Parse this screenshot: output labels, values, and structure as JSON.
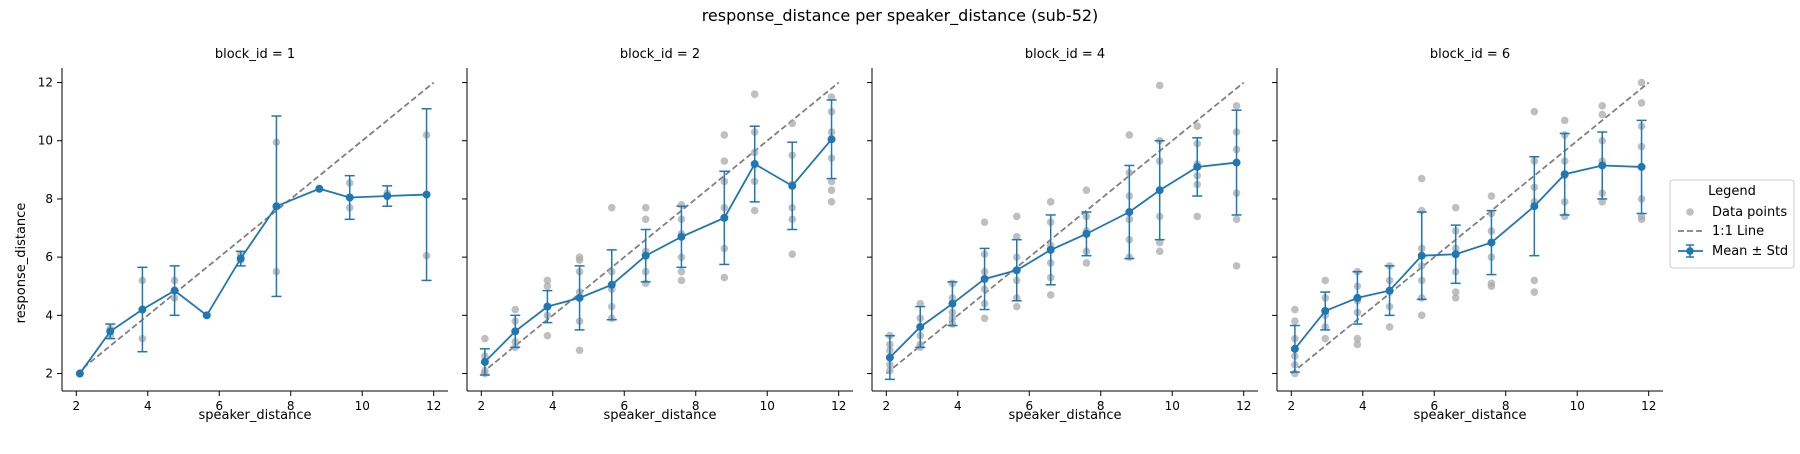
{
  "figure": {
    "title": "response_distance per speaker_distance (sub-52)",
    "xlabel": "speaker_distance",
    "ylabel": "response_distance"
  },
  "legend": {
    "title": "Legend",
    "items": [
      {
        "label": "Data points"
      },
      {
        "label": "1:1 Line"
      },
      {
        "label": "Mean ± Std"
      }
    ],
    "placement": "right"
  },
  "colors": {
    "mean": "#1f77b4",
    "points": "#a9a9a9",
    "identity": "#808080"
  },
  "chart_data": [
    {
      "type": "line",
      "title": "block_id = 1",
      "xlabel": "speaker_distance",
      "ylabel": "response_distance",
      "xlim": [
        1.6,
        12.4
      ],
      "ylim": [
        1.4,
        12.5
      ],
      "xticks": [
        2,
        4,
        6,
        8,
        10,
        12
      ],
      "yticks": [
        2,
        4,
        6,
        8,
        10,
        12
      ],
      "identity_line": [
        [
          2,
          2
        ],
        [
          12,
          12
        ]
      ],
      "mean_series": {
        "name": "Mean ± Std",
        "x": [
          2.1,
          2.95,
          3.85,
          4.75,
          5.65,
          6.6,
          7.6,
          8.8,
          9.65,
          10.7,
          11.8
        ],
        "mean": [
          2.0,
          3.45,
          4.2,
          4.85,
          4.0,
          5.95,
          7.75,
          8.35,
          8.05,
          8.1,
          8.15
        ],
        "std": [
          0.0,
          0.25,
          1.45,
          0.85,
          0.0,
          0.25,
          3.1,
          0.0,
          0.75,
          0.35,
          2.95
        ]
      },
      "points": [
        [
          2.1,
          2.0
        ],
        [
          2.95,
          3.3
        ],
        [
          2.95,
          3.55
        ],
        [
          3.85,
          5.2
        ],
        [
          3.85,
          3.2
        ],
        [
          4.75,
          4.6
        ],
        [
          4.75,
          5.2
        ],
        [
          5.65,
          4.0
        ],
        [
          6.6,
          5.9
        ],
        [
          6.6,
          6.1
        ],
        [
          7.6,
          9.95
        ],
        [
          7.6,
          5.5
        ],
        [
          8.8,
          8.35
        ],
        [
          9.65,
          8.55
        ],
        [
          9.65,
          7.7
        ],
        [
          10.7,
          8.1
        ],
        [
          10.7,
          8.2
        ],
        [
          11.8,
          10.2
        ],
        [
          11.8,
          6.05
        ]
      ]
    },
    {
      "type": "line",
      "title": "block_id = 2",
      "xlabel": "speaker_distance",
      "xlim": [
        1.6,
        12.4
      ],
      "ylim": [
        1.4,
        12.5
      ],
      "xticks": [
        2,
        4,
        6,
        8,
        10,
        12
      ],
      "yticks": [
        2,
        4,
        6,
        8,
        10,
        12
      ],
      "identity_line": [
        [
          2,
          2
        ],
        [
          12,
          12
        ]
      ],
      "mean_series": {
        "name": "Mean ± Std",
        "x": [
          2.1,
          2.95,
          3.85,
          4.75,
          5.65,
          6.6,
          7.6,
          8.8,
          9.65,
          10.7,
          11.8
        ],
        "mean": [
          2.4,
          3.45,
          4.3,
          4.6,
          5.05,
          6.05,
          6.7,
          7.35,
          9.2,
          8.45,
          10.05
        ],
        "std": [
          0.45,
          0.55,
          0.55,
          1.1,
          1.2,
          0.9,
          1.05,
          1.6,
          1.3,
          1.5,
          1.35
        ]
      },
      "points": [
        [
          2.1,
          2.0
        ],
        [
          2.1,
          3.2
        ],
        [
          2.1,
          2.6
        ],
        [
          2.1,
          2.1
        ],
        [
          2.95,
          4.2
        ],
        [
          2.95,
          3.1
        ],
        [
          2.95,
          2.9
        ],
        [
          2.95,
          3.8
        ],
        [
          3.85,
          5.2
        ],
        [
          3.85,
          4.0
        ],
        [
          3.85,
          3.3
        ],
        [
          3.85,
          5.0
        ],
        [
          4.75,
          6.0
        ],
        [
          4.75,
          5.5
        ],
        [
          4.75,
          4.8
        ],
        [
          4.75,
          3.8
        ],
        [
          4.75,
          2.8
        ],
        [
          4.75,
          5.9
        ],
        [
          5.65,
          7.7
        ],
        [
          5.65,
          5.5
        ],
        [
          5.65,
          4.9
        ],
        [
          5.65,
          4.3
        ],
        [
          5.65,
          3.9
        ],
        [
          6.6,
          7.7
        ],
        [
          6.6,
          7.3
        ],
        [
          6.6,
          6.2
        ],
        [
          6.6,
          5.5
        ],
        [
          6.6,
          5.1
        ],
        [
          7.6,
          7.8
        ],
        [
          7.6,
          7.3
        ],
        [
          7.6,
          6.8
        ],
        [
          7.6,
          6.0
        ],
        [
          7.6,
          5.5
        ],
        [
          7.6,
          5.2
        ],
        [
          8.8,
          10.2
        ],
        [
          8.8,
          9.3
        ],
        [
          8.8,
          8.6
        ],
        [
          8.8,
          7.7
        ],
        [
          8.8,
          6.3
        ],
        [
          8.8,
          5.3
        ],
        [
          9.65,
          11.6
        ],
        [
          9.65,
          10.3
        ],
        [
          9.65,
          9.6
        ],
        [
          9.65,
          8.6
        ],
        [
          9.65,
          7.6
        ],
        [
          10.7,
          10.6
        ],
        [
          10.7,
          9.5
        ],
        [
          10.7,
          8.5
        ],
        [
          10.7,
          7.7
        ],
        [
          10.7,
          7.3
        ],
        [
          10.7,
          6.1
        ],
        [
          11.8,
          11.5
        ],
        [
          11.8,
          11.0
        ],
        [
          11.8,
          10.3
        ],
        [
          11.8,
          9.4
        ],
        [
          11.8,
          8.6
        ],
        [
          11.8,
          8.3
        ],
        [
          11.8,
          7.9
        ]
      ]
    },
    {
      "type": "line",
      "title": "block_id = 4",
      "xlabel": "speaker_distance",
      "xlim": [
        1.6,
        12.4
      ],
      "ylim": [
        1.4,
        12.5
      ],
      "xticks": [
        2,
        4,
        6,
        8,
        10,
        12
      ],
      "yticks": [
        2,
        4,
        6,
        8,
        10,
        12
      ],
      "identity_line": [
        [
          2,
          2
        ],
        [
          12,
          12
        ]
      ],
      "mean_series": {
        "name": "Mean ± Std",
        "x": [
          2.1,
          2.95,
          3.85,
          4.75,
          5.65,
          6.6,
          7.6,
          8.8,
          9.65,
          10.7,
          11.8
        ],
        "mean": [
          2.55,
          3.6,
          4.4,
          5.25,
          5.55,
          6.25,
          6.8,
          7.55,
          8.3,
          9.1,
          9.25
        ],
        "std": [
          0.75,
          0.7,
          0.75,
          1.05,
          1.05,
          1.2,
          0.75,
          1.6,
          1.7,
          1.0,
          1.8
        ]
      },
      "points": [
        [
          2.1,
          3.3
        ],
        [
          2.1,
          2.8
        ],
        [
          2.1,
          2.3
        ],
        [
          2.1,
          2.1
        ],
        [
          2.1,
          3.0
        ],
        [
          2.95,
          4.4
        ],
        [
          2.95,
          3.9
        ],
        [
          2.95,
          3.3
        ],
        [
          2.95,
          3.0
        ],
        [
          2.95,
          2.9
        ],
        [
          3.85,
          5.1
        ],
        [
          3.85,
          4.6
        ],
        [
          3.85,
          4.1
        ],
        [
          3.85,
          3.9
        ],
        [
          3.85,
          3.7
        ],
        [
          4.75,
          7.2
        ],
        [
          4.75,
          6.1
        ],
        [
          4.75,
          5.5
        ],
        [
          4.75,
          4.9
        ],
        [
          4.75,
          4.4
        ],
        [
          4.75,
          3.9
        ],
        [
          5.65,
          7.4
        ],
        [
          5.65,
          6.7
        ],
        [
          5.65,
          6.0
        ],
        [
          5.65,
          5.2
        ],
        [
          5.65,
          4.6
        ],
        [
          5.65,
          4.3
        ],
        [
          6.6,
          7.9
        ],
        [
          6.6,
          7.2
        ],
        [
          6.6,
          6.4
        ],
        [
          6.6,
          5.8
        ],
        [
          6.6,
          5.3
        ],
        [
          6.6,
          4.7
        ],
        [
          7.6,
          8.3
        ],
        [
          7.6,
          7.4
        ],
        [
          7.6,
          6.9
        ],
        [
          7.6,
          6.2
        ],
        [
          7.6,
          5.8
        ],
        [
          8.8,
          10.2
        ],
        [
          8.8,
          8.9
        ],
        [
          8.8,
          8.1
        ],
        [
          8.8,
          7.3
        ],
        [
          8.8,
          6.6
        ],
        [
          8.8,
          6.0
        ],
        [
          9.65,
          11.9
        ],
        [
          9.65,
          10.0
        ],
        [
          9.65,
          9.3
        ],
        [
          9.65,
          7.4
        ],
        [
          9.65,
          6.5
        ],
        [
          9.65,
          6.2
        ],
        [
          10.7,
          10.5
        ],
        [
          10.7,
          9.9
        ],
        [
          10.7,
          9.2
        ],
        [
          10.7,
          8.8
        ],
        [
          10.7,
          8.5
        ],
        [
          10.7,
          7.4
        ],
        [
          11.8,
          11.2
        ],
        [
          11.8,
          10.3
        ],
        [
          11.8,
          9.7
        ],
        [
          11.8,
          8.2
        ],
        [
          11.8,
          7.3
        ],
        [
          11.8,
          5.7
        ]
      ]
    },
    {
      "type": "line",
      "title": "block_id = 6",
      "xlabel": "speaker_distance",
      "xlim": [
        1.6,
        12.4
      ],
      "ylim": [
        1.4,
        12.5
      ],
      "xticks": [
        2,
        4,
        6,
        8,
        10,
        12
      ],
      "yticks": [
        2,
        4,
        6,
        8,
        10,
        12
      ],
      "identity_line": [
        [
          2,
          2
        ],
        [
          12,
          12
        ]
      ],
      "mean_series": {
        "name": "Mean ± Std",
        "x": [
          2.1,
          2.95,
          3.85,
          4.75,
          5.65,
          6.6,
          7.6,
          8.8,
          9.65,
          10.7,
          11.8
        ],
        "mean": [
          2.85,
          4.15,
          4.6,
          4.85,
          6.05,
          6.1,
          6.5,
          7.75,
          8.85,
          9.15,
          9.1
        ],
        "std": [
          0.8,
          0.65,
          0.9,
          0.85,
          1.5,
          1.0,
          1.1,
          1.7,
          1.4,
          1.15,
          1.6
        ]
      },
      "points": [
        [
          2.1,
          4.2
        ],
        [
          2.1,
          3.8
        ],
        [
          2.1,
          3.2
        ],
        [
          2.1,
          2.6
        ],
        [
          2.1,
          2.3
        ],
        [
          2.1,
          2.0
        ],
        [
          2.95,
          5.2
        ],
        [
          2.95,
          4.6
        ],
        [
          2.95,
          4.0
        ],
        [
          2.95,
          3.6
        ],
        [
          2.95,
          3.2
        ],
        [
          3.85,
          5.5
        ],
        [
          3.85,
          5.0
        ],
        [
          3.85,
          4.5
        ],
        [
          3.85,
          4.1
        ],
        [
          3.85,
          3.2
        ],
        [
          3.85,
          3.0
        ],
        [
          4.75,
          5.7
        ],
        [
          4.75,
          5.2
        ],
        [
          4.75,
          4.8
        ],
        [
          4.75,
          4.3
        ],
        [
          4.75,
          3.6
        ],
        [
          5.65,
          8.7
        ],
        [
          5.65,
          7.6
        ],
        [
          5.65,
          6.3
        ],
        [
          5.65,
          5.7
        ],
        [
          5.65,
          5.2
        ],
        [
          5.65,
          4.6
        ],
        [
          5.65,
          4.0
        ],
        [
          6.6,
          7.7
        ],
        [
          6.6,
          6.9
        ],
        [
          6.6,
          6.3
        ],
        [
          6.6,
          5.5
        ],
        [
          6.6,
          4.8
        ],
        [
          6.6,
          4.6
        ],
        [
          7.6,
          8.1
        ],
        [
          7.6,
          7.5
        ],
        [
          7.6,
          6.9
        ],
        [
          7.6,
          6.0
        ],
        [
          7.6,
          5.1
        ],
        [
          7.6,
          5.0
        ],
        [
          8.8,
          11.0
        ],
        [
          8.8,
          9.3
        ],
        [
          8.8,
          8.4
        ],
        [
          8.8,
          7.9
        ],
        [
          8.8,
          5.2
        ],
        [
          8.8,
          4.8
        ],
        [
          9.65,
          10.7
        ],
        [
          9.65,
          10.2
        ],
        [
          9.65,
          9.3
        ],
        [
          9.65,
          8.8
        ],
        [
          9.65,
          7.9
        ],
        [
          9.65,
          7.4
        ],
        [
          10.7,
          11.2
        ],
        [
          10.7,
          10.9
        ],
        [
          10.7,
          10.0
        ],
        [
          10.7,
          9.3
        ],
        [
          10.7,
          8.2
        ],
        [
          10.7,
          7.9
        ],
        [
          11.8,
          12.0
        ],
        [
          11.8,
          11.3
        ],
        [
          11.8,
          10.5
        ],
        [
          11.8,
          9.8
        ],
        [
          11.8,
          8.0
        ],
        [
          11.8,
          7.4
        ],
        [
          11.8,
          7.3
        ]
      ]
    }
  ]
}
